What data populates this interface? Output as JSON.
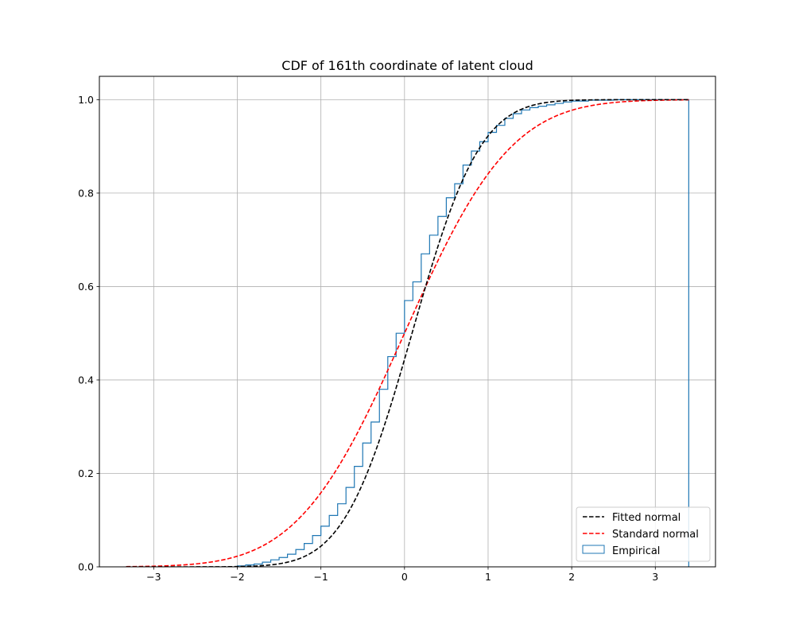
{
  "chart_data": {
    "type": "line",
    "title": "CDF of 161th coordinate of latent cloud",
    "xlabel": "",
    "ylabel": "",
    "xlim": [
      -3.65,
      3.72
    ],
    "ylim": [
      0.0,
      1.05
    ],
    "x_ticks": [
      -3,
      -2,
      -1,
      0,
      1,
      2,
      3
    ],
    "x_tick_labels": [
      "−3",
      "−2",
      "−1",
      "0",
      "1",
      "2",
      "3"
    ],
    "y_ticks": [
      0.0,
      0.2,
      0.4,
      0.6,
      0.8,
      1.0
    ],
    "y_tick_labels": [
      "0.0",
      "0.2",
      "0.4",
      "0.6",
      "0.8",
      "1.0"
    ],
    "grid": true,
    "legend_position": "lower-right",
    "series": [
      {
        "name": "Fitted normal",
        "kind": "dashed-line",
        "color": "#000000",
        "x_range": [
          -3.33,
          3.4
        ],
        "mean": 0.09,
        "std": 0.64
      },
      {
        "name": "Standard normal",
        "kind": "dashed-line",
        "color": "#ff0000",
        "x_range": [
          -3.33,
          3.4
        ],
        "mean": 0.0,
        "std": 1.0
      },
      {
        "name": "Empirical",
        "kind": "step",
        "color": "#1f77b4",
        "x": [
          -2.0,
          -1.9,
          -1.8,
          -1.7,
          -1.6,
          -1.5,
          -1.4,
          -1.3,
          -1.2,
          -1.1,
          -1.0,
          -0.9,
          -0.8,
          -0.7,
          -0.6,
          -0.5,
          -0.4,
          -0.3,
          -0.2,
          -0.1,
          0.0,
          0.1,
          0.2,
          0.3,
          0.4,
          0.5,
          0.6,
          0.7,
          0.8,
          0.9,
          1.0,
          1.1,
          1.2,
          1.3,
          1.4,
          1.5,
          1.6,
          1.7,
          1.8,
          1.9,
          2.0,
          2.2,
          2.5,
          3.0,
          3.4
        ],
        "y": [
          0.002,
          0.004,
          0.006,
          0.01,
          0.015,
          0.02,
          0.027,
          0.037,
          0.05,
          0.067,
          0.087,
          0.11,
          0.135,
          0.17,
          0.215,
          0.265,
          0.31,
          0.38,
          0.45,
          0.5,
          0.57,
          0.61,
          0.67,
          0.71,
          0.75,
          0.79,
          0.82,
          0.86,
          0.89,
          0.91,
          0.93,
          0.945,
          0.96,
          0.97,
          0.978,
          0.983,
          0.986,
          0.989,
          0.992,
          0.995,
          0.997,
          0.999,
          1.0,
          1.0,
          1.0
        ]
      }
    ]
  }
}
